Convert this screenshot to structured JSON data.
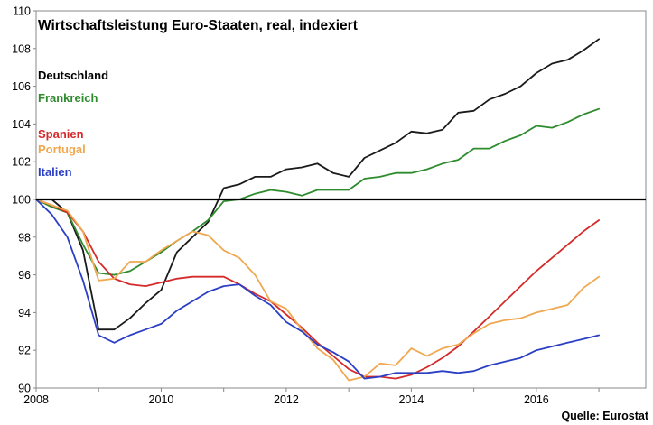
{
  "chart_data": {
    "type": "line",
    "title": "Wirtschaftsleistung Euro-Staaten, real, indexiert",
    "source": "Quelle: Eurostat",
    "xlabel": "",
    "ylabel": "",
    "xlim": [
      2008,
      2017.75
    ],
    "ylim": [
      90,
      110
    ],
    "x_ticks": [
      2008,
      2010,
      2012,
      2014,
      2016
    ],
    "y_ticks": [
      90,
      92,
      94,
      96,
      98,
      100,
      102,
      104,
      106,
      108,
      110
    ],
    "reference_line": 100,
    "grid": false,
    "legend_position": "left",
    "series": [
      {
        "name": "Deutschland",
        "color": "#1a1a1a",
        "x": [
          2008.0,
          2008.25,
          2008.5,
          2008.75,
          2009.0,
          2009.25,
          2009.5,
          2009.75,
          2010.0,
          2010.25,
          2010.5,
          2010.75,
          2011.0,
          2011.25,
          2011.5,
          2011.75,
          2012.0,
          2012.25,
          2012.5,
          2012.75,
          2013.0,
          2013.25,
          2013.5,
          2013.75,
          2014.0,
          2014.25,
          2014.5,
          2014.75,
          2015.0,
          2015.25,
          2015.5,
          2015.75,
          2016.0,
          2016.25,
          2016.5,
          2016.75,
          2017.0
        ],
        "values": [
          100.0,
          100.0,
          99.3,
          97.3,
          93.1,
          93.1,
          93.7,
          94.5,
          95.2,
          97.2,
          98.0,
          98.8,
          100.6,
          100.8,
          101.2,
          101.2,
          101.6,
          101.7,
          101.9,
          101.4,
          101.2,
          102.2,
          102.6,
          103.0,
          103.6,
          103.5,
          103.7,
          104.6,
          104.7,
          105.3,
          105.6,
          106.0,
          106.7,
          107.2,
          107.4,
          107.9,
          108.5
        ]
      },
      {
        "name": "Frankreich",
        "color": "#2e8b2e",
        "x": [
          2008.0,
          2008.25,
          2008.5,
          2008.75,
          2009.0,
          2009.25,
          2009.5,
          2009.75,
          2010.0,
          2010.25,
          2010.5,
          2010.75,
          2011.0,
          2011.25,
          2011.5,
          2011.75,
          2012.0,
          2012.25,
          2012.5,
          2012.75,
          2013.0,
          2013.25,
          2013.5,
          2013.75,
          2014.0,
          2014.25,
          2014.5,
          2014.75,
          2015.0,
          2015.25,
          2015.5,
          2015.75,
          2016.0,
          2016.25,
          2016.5,
          2016.75,
          2017.0
        ],
        "values": [
          100.0,
          99.6,
          99.3,
          97.6,
          96.1,
          96.0,
          96.2,
          96.7,
          97.2,
          97.8,
          98.3,
          98.9,
          99.9,
          100.0,
          100.3,
          100.5,
          100.4,
          100.2,
          100.5,
          100.5,
          100.5,
          101.1,
          101.2,
          101.4,
          101.4,
          101.6,
          101.9,
          102.1,
          102.7,
          102.7,
          103.1,
          103.4,
          103.9,
          103.8,
          104.1,
          104.5,
          104.8
        ]
      },
      {
        "name": "Spanien",
        "color": "#d42a2a",
        "x": [
          2008.0,
          2008.25,
          2008.5,
          2008.75,
          2009.0,
          2009.25,
          2009.5,
          2009.75,
          2010.0,
          2010.25,
          2010.5,
          2010.75,
          2011.0,
          2011.25,
          2011.5,
          2011.75,
          2012.0,
          2012.25,
          2012.5,
          2012.75,
          2013.0,
          2013.25,
          2013.5,
          2013.75,
          2014.0,
          2014.25,
          2014.5,
          2014.75,
          2015.0,
          2015.25,
          2015.5,
          2015.75,
          2016.0,
          2016.25,
          2016.5,
          2016.75,
          2017.0
        ],
        "values": [
          100.0,
          99.7,
          99.3,
          98.3,
          96.7,
          95.8,
          95.5,
          95.4,
          95.6,
          95.8,
          95.9,
          95.9,
          95.9,
          95.5,
          95.0,
          94.6,
          93.9,
          93.2,
          92.4,
          91.7,
          91.0,
          90.6,
          90.6,
          90.5,
          90.7,
          91.1,
          91.6,
          92.2,
          93.0,
          93.8,
          94.6,
          95.4,
          96.2,
          96.9,
          97.6,
          98.3,
          98.9
        ]
      },
      {
        "name": "Portugal",
        "color": "#f0a850",
        "x": [
          2008.0,
          2008.25,
          2008.5,
          2008.75,
          2009.0,
          2009.25,
          2009.5,
          2009.75,
          2010.0,
          2010.25,
          2010.5,
          2010.75,
          2011.0,
          2011.25,
          2011.5,
          2011.75,
          2012.0,
          2012.25,
          2012.5,
          2012.75,
          2013.0,
          2013.25,
          2013.5,
          2013.75,
          2014.0,
          2014.25,
          2014.5,
          2014.75,
          2015.0,
          2015.25,
          2015.5,
          2015.75,
          2016.0,
          2016.25,
          2016.5,
          2016.75,
          2017.0
        ],
        "values": [
          100.0,
          99.7,
          99.4,
          98.3,
          95.7,
          95.8,
          96.7,
          96.7,
          97.3,
          97.8,
          98.3,
          98.1,
          97.3,
          96.9,
          96.0,
          94.6,
          94.2,
          93.1,
          92.1,
          91.5,
          90.4,
          90.6,
          91.3,
          91.2,
          92.1,
          91.7,
          92.1,
          92.3,
          92.9,
          93.4,
          93.6,
          93.7,
          94.0,
          94.2,
          94.4,
          95.3,
          95.9
        ]
      },
      {
        "name": "Italien",
        "color": "#2b3fc4",
        "x": [
          2008.0,
          2008.25,
          2008.5,
          2008.75,
          2009.0,
          2009.25,
          2009.5,
          2009.75,
          2010.0,
          2010.25,
          2010.5,
          2010.75,
          2011.0,
          2011.25,
          2011.5,
          2011.75,
          2012.0,
          2012.25,
          2012.5,
          2012.75,
          2013.0,
          2013.25,
          2013.5,
          2013.75,
          2014.0,
          2014.25,
          2014.5,
          2014.75,
          2015.0,
          2015.25,
          2015.5,
          2015.75,
          2016.0,
          2016.25,
          2016.5,
          2016.75,
          2017.0
        ],
        "values": [
          100.0,
          99.2,
          98.0,
          95.7,
          92.8,
          92.4,
          92.8,
          93.1,
          93.4,
          94.1,
          94.6,
          95.1,
          95.4,
          95.5,
          94.9,
          94.4,
          93.5,
          93.0,
          92.3,
          91.9,
          91.4,
          90.5,
          90.6,
          90.8,
          90.8,
          90.8,
          90.9,
          90.8,
          90.9,
          91.2,
          91.4,
          91.6,
          92.0,
          92.2,
          92.4,
          92.6,
          92.8
        ]
      }
    ]
  }
}
